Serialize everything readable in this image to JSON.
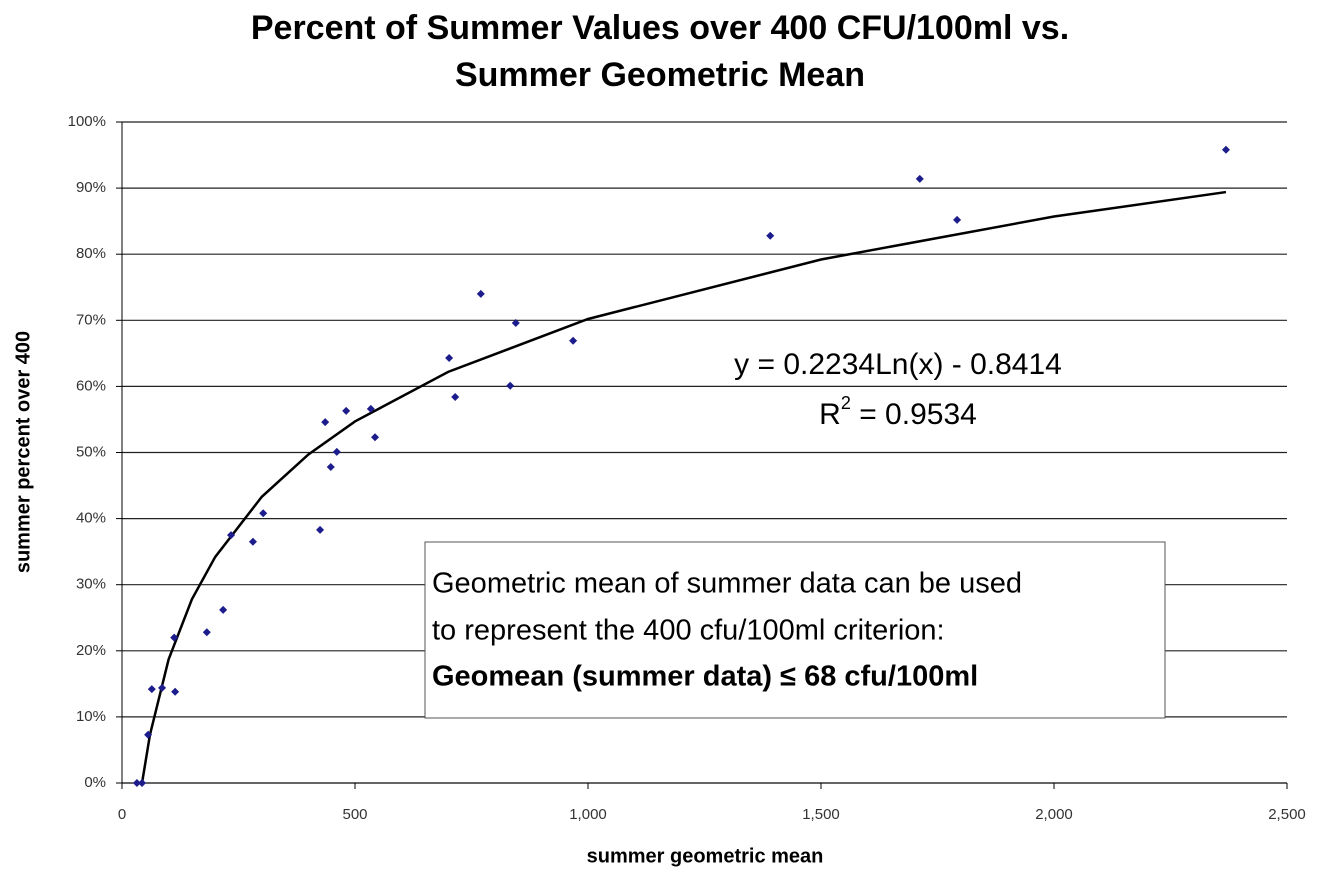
{
  "chart_data": {
    "type": "scatter",
    "title": [
      "Percent of Summer Values over 400 CFU/100ml vs.",
      "Summer Geometric Mean"
    ],
    "xlabel": "summer geometric mean",
    "ylabel": "summer percent over 400",
    "x": [
      32,
      43,
      56,
      64,
      86,
      112,
      114,
      182,
      217,
      234,
      281,
      303,
      425,
      436,
      448,
      461,
      481,
      534,
      543,
      702,
      715,
      770,
      833,
      845,
      968,
      1391,
      1712,
      1792,
      2369
    ],
    "values": [
      0,
      0,
      7.3,
      14.2,
      14.4,
      22,
      13.8,
      22.8,
      26.2,
      37.5,
      36.5,
      40.8,
      38.3,
      54.6,
      47.8,
      50.1,
      56.3,
      56.6,
      52.3,
      64.3,
      58.4,
      74.0,
      60.1,
      69.6,
      66.9,
      82.8,
      91.4,
      85.2,
      95.8
    ],
    "color": "#1c1c8c",
    "trendline": {
      "x": [
        43,
        60,
        100,
        150,
        200,
        300,
        400,
        500,
        700,
        1000,
        1500,
        2000,
        2369
      ],
      "values": [
        0,
        7.3,
        18.7,
        27.8,
        34.2,
        43.3,
        49.7,
        54.7,
        62.2,
        70.2,
        79.2,
        85.7,
        89.4
      ],
      "color": "#000000"
    },
    "xlim": [
      0,
      2500
    ],
    "xticks": [
      0,
      500,
      {
        "value": 1000,
        "label": "1,000"
      },
      {
        "value": 1500,
        "label": "1,500"
      },
      {
        "value": 2000,
        "label": "2,000"
      },
      {
        "value": 2500,
        "label": "2,500"
      }
    ],
    "ylim": [
      0,
      100
    ],
    "yticks": [
      {
        "value": 0,
        "label": "0%"
      },
      {
        "value": 10,
        "label": "10%"
      },
      {
        "value": 20,
        "label": "20%"
      },
      {
        "value": 30,
        "label": "30%"
      },
      {
        "value": 40,
        "label": "40%"
      },
      {
        "value": 50,
        "label": "50%"
      },
      {
        "value": 60,
        "label": "60%"
      },
      {
        "value": 70,
        "label": "70%"
      },
      {
        "value": 80,
        "label": "80%"
      },
      {
        "value": 90,
        "label": "90%"
      },
      {
        "value": 100,
        "label": "100%"
      }
    ],
    "grid": true,
    "equation": "y = 0.2234Ln(x) - 0.8414",
    "r_squared": {
      "base": "R",
      "sup": "2",
      "rest": " = 0.9534"
    },
    "note": [
      "Geometric mean of summer data can be used",
      "to represent the 400 cfu/100ml criterion:",
      "Geomean (summer data) ≤ 68 cfu/100ml"
    ]
  }
}
